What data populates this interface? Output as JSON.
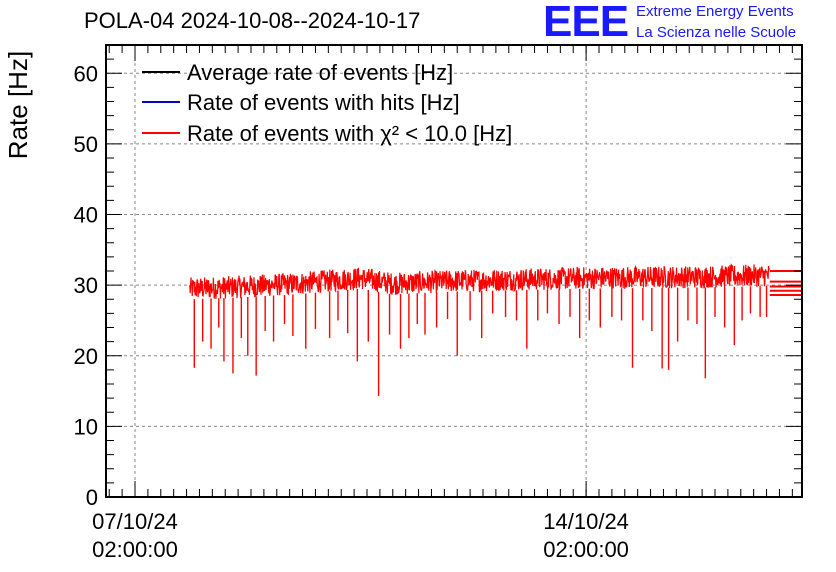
{
  "header": {
    "title": "POLA-04 2024-10-08--2024-10-17",
    "logo_text": "EEE",
    "logo_line1": "Extreme Energy Events",
    "logo_line2": "La Scienza nelle Scuole"
  },
  "colors": {
    "average": "#000000",
    "hits": "#0000cc",
    "chi2": "#ff0000",
    "logo": "#1a1aff",
    "grid": "#888888"
  },
  "chart_data": {
    "type": "line",
    "title": "POLA-04 2024-10-08--2024-10-17",
    "xlabel": "",
    "ylabel": "Rate [Hz]",
    "ylim": [
      0,
      64
    ],
    "xlim_days": [
      -0.45,
      10.35
    ],
    "y_ticks": [
      0,
      10,
      20,
      30,
      40,
      50,
      60
    ],
    "x_ticks": [
      {
        "day": 0,
        "date": "07/10/24",
        "time": "02:00:00"
      },
      {
        "day": 7,
        "date": "14/10/24",
        "time": "02:00:00"
      }
    ],
    "grid": true,
    "legend_position": "top-left",
    "legend": [
      {
        "name": "Average rate of events [Hz]",
        "color_key": "average"
      },
      {
        "name": "Rate of events with hits [Hz]",
        "color_key": "hits"
      },
      {
        "name": "Rate of events with χ² < 10.0 [Hz]",
        "color_key": "chi2"
      }
    ],
    "series": [
      {
        "name": "Rate of events with χ² < 10.0 [Hz]",
        "color_key": "chi2",
        "x_start_day": 0.85,
        "x_end_day": 9.85,
        "band_trend": [
          [
            0.85,
            29.5
          ],
          [
            1.5,
            29.7
          ],
          [
            2.5,
            30.2
          ],
          [
            3.5,
            31.0
          ],
          [
            4.0,
            30.2
          ],
          [
            5.0,
            30.6
          ],
          [
            6.0,
            30.8
          ],
          [
            7.0,
            31.0
          ],
          [
            8.0,
            31.1
          ],
          [
            9.0,
            31.2
          ],
          [
            9.85,
            31.4
          ]
        ],
        "band_halfwidth": 1.6,
        "dips": [
          [
            0.92,
            18.3
          ],
          [
            1.05,
            22.0
          ],
          [
            1.18,
            21.0
          ],
          [
            1.3,
            24.0
          ],
          [
            1.38,
            19.2
          ],
          [
            1.52,
            17.5
          ],
          [
            1.65,
            22.5
          ],
          [
            1.75,
            20.0
          ],
          [
            1.88,
            17.2
          ],
          [
            2.02,
            23.5
          ],
          [
            2.15,
            22.0
          ],
          [
            2.32,
            24.5
          ],
          [
            2.45,
            22.8
          ],
          [
            2.65,
            21.0
          ],
          [
            2.8,
            23.8
          ],
          [
            3.02,
            22.5
          ],
          [
            3.15,
            25.0
          ],
          [
            3.3,
            23.2
          ],
          [
            3.45,
            19.2
          ],
          [
            3.62,
            22.0
          ],
          [
            3.78,
            14.3
          ],
          [
            3.95,
            23.0
          ],
          [
            4.12,
            21.0
          ],
          [
            4.25,
            22.5
          ],
          [
            4.38,
            24.5
          ],
          [
            4.5,
            23.0
          ],
          [
            4.68,
            24.0
          ],
          [
            4.85,
            25.2
          ],
          [
            5.0,
            20.0
          ],
          [
            5.2,
            25.0
          ],
          [
            5.38,
            22.5
          ],
          [
            5.55,
            26.0
          ],
          [
            5.75,
            25.5
          ],
          [
            5.92,
            25.0
          ],
          [
            6.08,
            21.0
          ],
          [
            6.25,
            25.0
          ],
          [
            6.4,
            26.0
          ],
          [
            6.58,
            24.5
          ],
          [
            6.75,
            25.5
          ],
          [
            6.9,
            22.5
          ],
          [
            7.05,
            25.0
          ],
          [
            7.22,
            24.0
          ],
          [
            7.4,
            25.5
          ],
          [
            7.55,
            25.0
          ],
          [
            7.72,
            18.3
          ],
          [
            7.88,
            25.0
          ],
          [
            8.02,
            23.5
          ],
          [
            8.18,
            18.2
          ],
          [
            8.28,
            18.0
          ],
          [
            8.42,
            22.0
          ],
          [
            8.58,
            25.0
          ],
          [
            8.72,
            24.5
          ],
          [
            8.85,
            16.8
          ],
          [
            9.0,
            25.5
          ],
          [
            9.15,
            24.0
          ],
          [
            9.3,
            21.5
          ],
          [
            9.42,
            25.0
          ],
          [
            9.55,
            26.0
          ],
          [
            9.7,
            25.5
          ],
          [
            9.8,
            25.5
          ]
        ],
        "tail_levels": [
          28.6,
          29.2,
          29.8,
          30.5,
          32.0
        ]
      }
    ]
  }
}
